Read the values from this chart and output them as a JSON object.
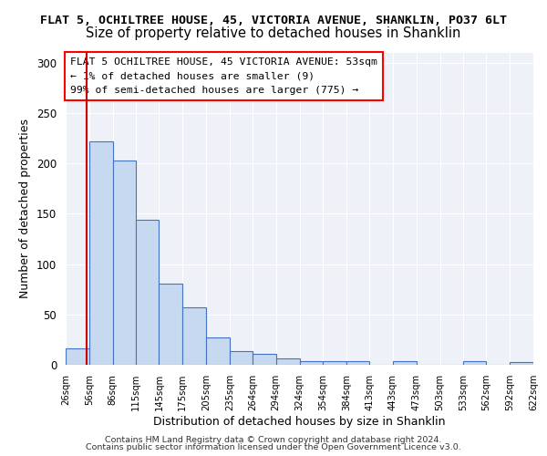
{
  "title1": "FLAT 5, OCHILTREE HOUSE, 45, VICTORIA AVENUE, SHANKLIN, PO37 6LT",
  "title2": "Size of property relative to detached houses in Shanklin",
  "xlabel": "Distribution of detached houses by size in Shanklin",
  "ylabel": "Number of detached properties",
  "footer1": "Contains HM Land Registry data © Crown copyright and database right 2024.",
  "footer2": "Contains public sector information licensed under the Open Government Licence v3.0.",
  "annotation_line1": "FLAT 5 OCHILTREE HOUSE, 45 VICTORIA AVENUE: 53sqm",
  "annotation_line2": "← 1% of detached houses are smaller (9)",
  "annotation_line3": "99% of semi-detached houses are larger (775) →",
  "property_size": 53,
  "bin_edges": [
    26,
    56,
    86,
    115,
    145,
    175,
    205,
    235,
    264,
    294,
    324,
    354,
    384,
    413,
    443,
    473,
    503,
    533,
    562,
    592,
    622
  ],
  "bar_heights": [
    16,
    222,
    203,
    144,
    81,
    57,
    27,
    14,
    11,
    6,
    4,
    4,
    4,
    0,
    4,
    0,
    0,
    4,
    0,
    3
  ],
  "bar_color": "#c6d9f0",
  "bar_edge_color": "#4472c4",
  "vline_color": "#cc0000",
  "vline_x": 53,
  "ylim": [
    0,
    310
  ],
  "yticks": [
    0,
    50,
    100,
    150,
    200,
    250,
    300
  ],
  "background_color": "#eef2f8",
  "title1_fontsize": 9.5,
  "title2_fontsize": 10.5,
  "annotation_fontsize": 8.2,
  "axis_fontsize": 9
}
